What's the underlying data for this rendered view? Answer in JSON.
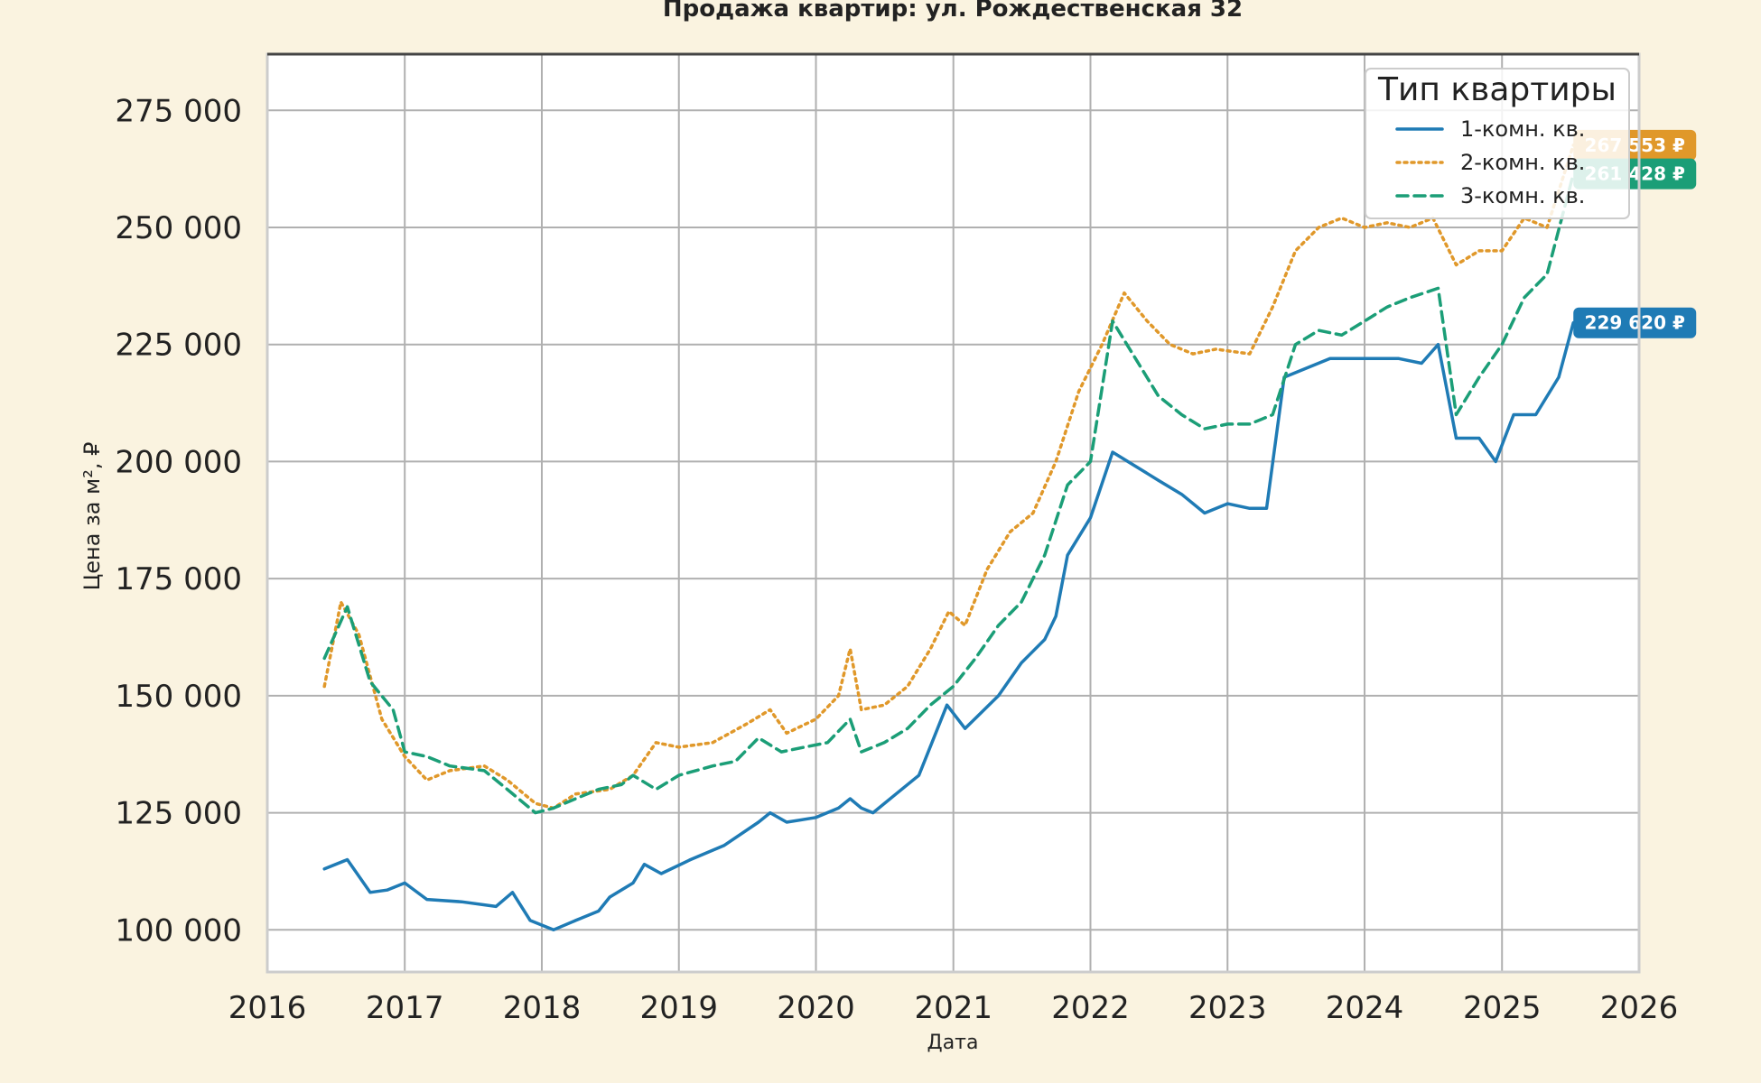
{
  "chart_data": {
    "type": "line",
    "title": "Продажа квартир: ул. Рождественская 32",
    "xlabel": "Дата",
    "ylabel": "Цена за м², ₽",
    "xlim": [
      "2016-01-01",
      "2026-01-01"
    ],
    "ylim": [
      91000,
      287000
    ],
    "x_ticks": [
      "2016",
      "2017",
      "2018",
      "2019",
      "2020",
      "2021",
      "2022",
      "2023",
      "2024",
      "2025",
      "2026"
    ],
    "y_ticks": [
      {
        "value": 100000,
        "label": "100 000"
      },
      {
        "value": 125000,
        "label": "125 000"
      },
      {
        "value": 150000,
        "label": "150 000"
      },
      {
        "value": 175000,
        "label": "175 000"
      },
      {
        "value": 200000,
        "label": "200 000"
      },
      {
        "value": 225000,
        "label": "225 000"
      },
      {
        "value": 250000,
        "label": "250 000"
      },
      {
        "value": 275000,
        "label": "275 000"
      }
    ],
    "grid": true,
    "legend": {
      "title": "Тип квартиры",
      "position": "top-right"
    },
    "series": [
      {
        "name": "1-комн. кв.",
        "color": "#1f7bb5",
        "style": "solid",
        "end_label": "229 620 ₽",
        "points": [
          [
            "2016-06-01",
            113000
          ],
          [
            "2016-08-01",
            115000
          ],
          [
            "2016-10-01",
            108000
          ],
          [
            "2016-11-15",
            108500
          ],
          [
            "2017-01-01",
            110000
          ],
          [
            "2017-03-01",
            106500
          ],
          [
            "2017-06-01",
            106000
          ],
          [
            "2017-09-01",
            105000
          ],
          [
            "2017-10-15",
            108000
          ],
          [
            "2017-12-01",
            102000
          ],
          [
            "2018-02-01",
            100000
          ],
          [
            "2018-04-01",
            102000
          ],
          [
            "2018-06-01",
            104000
          ],
          [
            "2018-07-01",
            107000
          ],
          [
            "2018-09-01",
            110000
          ],
          [
            "2018-10-01",
            114000
          ],
          [
            "2018-11-15",
            112000
          ],
          [
            "2019-02-01",
            115000
          ],
          [
            "2019-05-01",
            118000
          ],
          [
            "2019-08-01",
            123000
          ],
          [
            "2019-09-01",
            125000
          ],
          [
            "2019-10-15",
            123000
          ],
          [
            "2020-01-01",
            124000
          ],
          [
            "2020-03-01",
            126000
          ],
          [
            "2020-04-01",
            128000
          ],
          [
            "2020-05-01",
            126000
          ],
          [
            "2020-06-01",
            125000
          ],
          [
            "2020-08-01",
            129000
          ],
          [
            "2020-10-01",
            133000
          ],
          [
            "2020-12-15",
            148000
          ],
          [
            "2021-02-01",
            143000
          ],
          [
            "2021-05-01",
            150000
          ],
          [
            "2021-07-01",
            157000
          ],
          [
            "2021-09-01",
            162000
          ],
          [
            "2021-10-01",
            167000
          ],
          [
            "2021-11-01",
            180000
          ],
          [
            "2022-01-01",
            188000
          ],
          [
            "2022-03-01",
            202000
          ],
          [
            "2022-05-01",
            199000
          ],
          [
            "2022-07-01",
            196000
          ],
          [
            "2022-09-01",
            193000
          ],
          [
            "2022-11-01",
            189000
          ],
          [
            "2023-01-01",
            191000
          ],
          [
            "2023-03-01",
            190000
          ],
          [
            "2023-04-15",
            190000
          ],
          [
            "2023-06-01",
            218000
          ],
          [
            "2023-08-01",
            220000
          ],
          [
            "2023-10-01",
            222000
          ],
          [
            "2023-12-01",
            222000
          ],
          [
            "2024-02-01",
            222000
          ],
          [
            "2024-04-01",
            222000
          ],
          [
            "2024-06-01",
            221000
          ],
          [
            "2024-07-15",
            225000
          ],
          [
            "2024-09-01",
            205000
          ],
          [
            "2024-11-01",
            205000
          ],
          [
            "2024-12-15",
            200000
          ],
          [
            "2025-02-01",
            210000
          ],
          [
            "2025-04-01",
            210000
          ],
          [
            "2025-06-01",
            218000
          ],
          [
            "2025-07-10",
            229620
          ]
        ]
      },
      {
        "name": "2-комн. кв.",
        "color": "#e0982a",
        "style": "dotted",
        "end_label": "267 553 ₽",
        "points": [
          [
            "2016-06-01",
            152000
          ],
          [
            "2016-07-15",
            170000
          ],
          [
            "2016-09-01",
            163000
          ],
          [
            "2016-11-01",
            145000
          ],
          [
            "2017-01-01",
            137000
          ],
          [
            "2017-03-01",
            132000
          ],
          [
            "2017-05-01",
            134000
          ],
          [
            "2017-08-01",
            135000
          ],
          [
            "2017-10-01",
            132000
          ],
          [
            "2017-12-15",
            127000
          ],
          [
            "2018-02-01",
            126000
          ],
          [
            "2018-04-01",
            129000
          ],
          [
            "2018-07-01",
            130000
          ],
          [
            "2018-09-01",
            133000
          ],
          [
            "2018-11-01",
            140000
          ],
          [
            "2019-01-01",
            139000
          ],
          [
            "2019-04-01",
            140000
          ],
          [
            "2019-07-01",
            144000
          ],
          [
            "2019-09-01",
            147000
          ],
          [
            "2019-10-15",
            142000
          ],
          [
            "2020-01-01",
            145000
          ],
          [
            "2020-03-01",
            150000
          ],
          [
            "2020-04-01",
            160000
          ],
          [
            "2020-05-01",
            147000
          ],
          [
            "2020-07-01",
            148000
          ],
          [
            "2020-09-01",
            152000
          ],
          [
            "2020-11-01",
            160000
          ],
          [
            "2020-12-20",
            168000
          ],
          [
            "2021-02-01",
            165000
          ],
          [
            "2021-04-01",
            177000
          ],
          [
            "2021-06-01",
            185000
          ],
          [
            "2021-08-01",
            189000
          ],
          [
            "2021-10-01",
            200000
          ],
          [
            "2021-12-01",
            215000
          ],
          [
            "2022-02-01",
            225000
          ],
          [
            "2022-04-01",
            236000
          ],
          [
            "2022-06-01",
            230000
          ],
          [
            "2022-08-01",
            225000
          ],
          [
            "2022-10-01",
            223000
          ],
          [
            "2022-12-01",
            224000
          ],
          [
            "2023-03-01",
            223000
          ],
          [
            "2023-05-01",
            233000
          ],
          [
            "2023-07-01",
            245000
          ],
          [
            "2023-09-01",
            250000
          ],
          [
            "2023-11-01",
            252000
          ],
          [
            "2024-01-01",
            250000
          ],
          [
            "2024-03-01",
            251000
          ],
          [
            "2024-05-01",
            250000
          ],
          [
            "2024-07-01",
            252000
          ],
          [
            "2024-09-01",
            242000
          ],
          [
            "2024-11-01",
            245000
          ],
          [
            "2025-01-01",
            245000
          ],
          [
            "2025-03-01",
            252000
          ],
          [
            "2025-05-01",
            250000
          ],
          [
            "2025-07-10",
            267553
          ]
        ]
      },
      {
        "name": "3-комн. кв.",
        "color": "#1b9e77",
        "style": "dashed",
        "end_label": "261 428 ₽",
        "points": [
          [
            "2016-06-01",
            158000
          ],
          [
            "2016-08-01",
            169000
          ],
          [
            "2016-10-01",
            153000
          ],
          [
            "2016-12-01",
            147000
          ],
          [
            "2017-01-01",
            138000
          ],
          [
            "2017-03-01",
            137000
          ],
          [
            "2017-05-01",
            135000
          ],
          [
            "2017-08-01",
            134000
          ],
          [
            "2017-10-01",
            130000
          ],
          [
            "2017-12-15",
            125000
          ],
          [
            "2018-02-01",
            126000
          ],
          [
            "2018-04-01",
            128000
          ],
          [
            "2018-06-01",
            130000
          ],
          [
            "2018-08-01",
            131000
          ],
          [
            "2018-09-01",
            133000
          ],
          [
            "2018-11-01",
            130000
          ],
          [
            "2019-01-01",
            133000
          ],
          [
            "2019-04-01",
            135000
          ],
          [
            "2019-06-01",
            136000
          ],
          [
            "2019-08-01",
            141000
          ],
          [
            "2019-10-01",
            138000
          ],
          [
            "2019-12-01",
            139000
          ],
          [
            "2020-02-01",
            140000
          ],
          [
            "2020-04-01",
            145000
          ],
          [
            "2020-05-01",
            138000
          ],
          [
            "2020-07-01",
            140000
          ],
          [
            "2020-09-01",
            143000
          ],
          [
            "2020-11-01",
            148000
          ],
          [
            "2021-01-01",
            152000
          ],
          [
            "2021-03-01",
            158000
          ],
          [
            "2021-05-01",
            165000
          ],
          [
            "2021-07-01",
            170000
          ],
          [
            "2021-09-01",
            180000
          ],
          [
            "2021-11-01",
            195000
          ],
          [
            "2022-01-01",
            200000
          ],
          [
            "2022-03-01",
            230000
          ],
          [
            "2022-05-01",
            222000
          ],
          [
            "2022-07-01",
            214000
          ],
          [
            "2022-09-01",
            210000
          ],
          [
            "2022-11-01",
            207000
          ],
          [
            "2023-01-01",
            208000
          ],
          [
            "2023-03-01",
            208000
          ],
          [
            "2023-05-01",
            210000
          ],
          [
            "2023-07-01",
            225000
          ],
          [
            "2023-09-01",
            228000
          ],
          [
            "2023-11-01",
            227000
          ],
          [
            "2024-01-01",
            230000
          ],
          [
            "2024-03-01",
            233000
          ],
          [
            "2024-05-01",
            235000
          ],
          [
            "2024-07-15",
            237000
          ],
          [
            "2024-09-01",
            210000
          ],
          [
            "2024-11-01",
            218000
          ],
          [
            "2025-01-01",
            225000
          ],
          [
            "2025-03-01",
            235000
          ],
          [
            "2025-05-01",
            240000
          ],
          [
            "2025-07-10",
            261428
          ]
        ]
      }
    ]
  }
}
